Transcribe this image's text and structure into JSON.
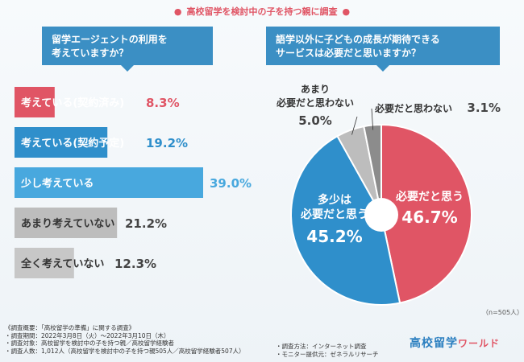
{
  "header": {
    "title": "高校留学を検討中の子を持つ親に調査",
    "bullet": "●"
  },
  "left_question": {
    "line1": "留学エージェントの利用を",
    "line2": "考えていますか？"
  },
  "right_question": {
    "line1": "語学以外に子どもの成長が期待できる",
    "line2": "サービスは必要だと思いますか？"
  },
  "chart_data": [
    {
      "type": "bar",
      "orientation": "horizontal",
      "title": "留学エージェントの利用を考えていますか？",
      "categories": [
        "考えている(契約済み)",
        "考えている(契約予定)",
        "少し考えている",
        "あまり考えていない",
        "全く考えていない"
      ],
      "values": [
        8.3,
        19.2,
        39.0,
        21.2,
        12.3
      ],
      "value_labels": [
        "8.3%",
        "19.2%",
        "39.0%",
        "21.2%",
        "12.3%"
      ],
      "colors": [
        "#e05565",
        "#2f8fcb",
        "#48a8de",
        "#bdbdbd",
        "#c7c7c7"
      ],
      "xlim": [
        0,
        50
      ]
    },
    {
      "type": "pie",
      "title": "語学以外に子どもの成長が期待できるサービスは必要だと思いますか？",
      "labels": [
        "必要だと思う",
        "多少は必要だと思う",
        "あまり必要だと思わない",
        "必要だと思わない"
      ],
      "values": [
        46.7,
        45.2,
        5.0,
        3.1
      ],
      "value_labels": [
        "46.7%",
        "45.2%",
        "5.0%",
        "3.1%"
      ],
      "colors": [
        "#e05565",
        "#2f8fcb",
        "#bdbdbd",
        "#8c8c8c"
      ],
      "n_note": "（n=505人）"
    }
  ],
  "footer": {
    "lines": [
      "《調査概要：「高校留学の準備」に関する調査》",
      "・調査期間：2022年3月8日（火）～2022年3月10日（木）",
      "・調査対象：高校留学を検討中の子を持つ親／高校留学経験者",
      "・調査人数：1,012人（高校留学を検討中の子を持つ親505人／高校留学経験者507人）"
    ],
    "lines_right": [
      "・調査方法：インターネット調査",
      "・モニター提供元：ゼネラルリサーチ"
    ]
  },
  "logo": {
    "main": "高校留学",
    "kana": "ワールド"
  }
}
